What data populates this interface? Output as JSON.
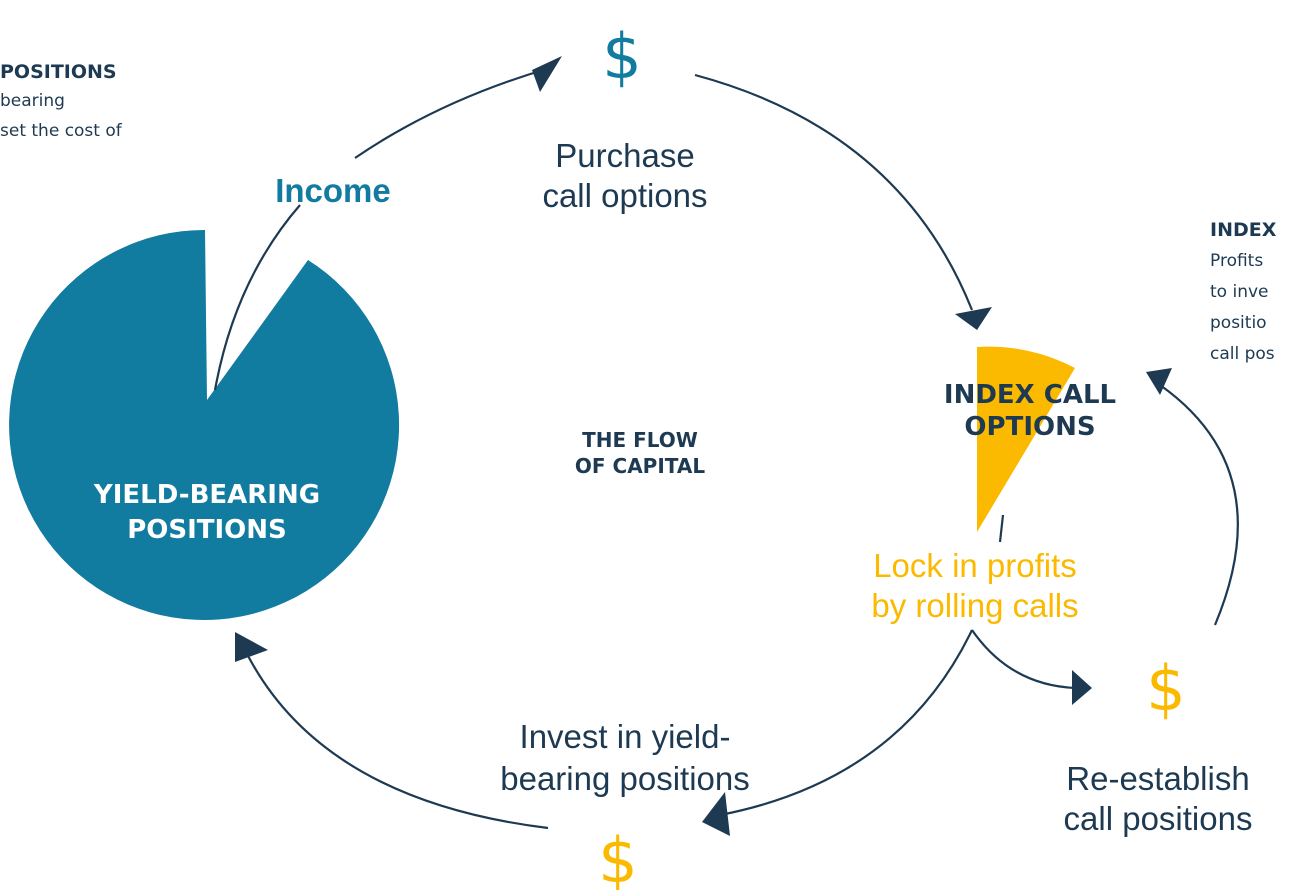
{
  "left_note": {
    "title": "POSITIONS",
    "lines": [
      "bearing",
      "set the cost of"
    ]
  },
  "right_note": {
    "title": "INDEX",
    "lines": [
      "Profits",
      "to inve",
      "positio",
      "call pos"
    ]
  },
  "center_label": [
    "THE FLOW",
    "OF CAPITAL"
  ],
  "yield_label": [
    "YIELD-BEARING",
    "POSITIONS"
  ],
  "index_label": [
    "INDEX CALL",
    "OPTIONS"
  ],
  "income": "Income",
  "dollar": "$",
  "purchase": [
    "Purchase",
    "call options"
  ],
  "lock_in": [
    "Lock in profits",
    "by rolling calls"
  ],
  "re_establish": [
    "Re-establish",
    "call positions"
  ],
  "invest": [
    "Invest in yield-",
    "bearing positions"
  ]
}
